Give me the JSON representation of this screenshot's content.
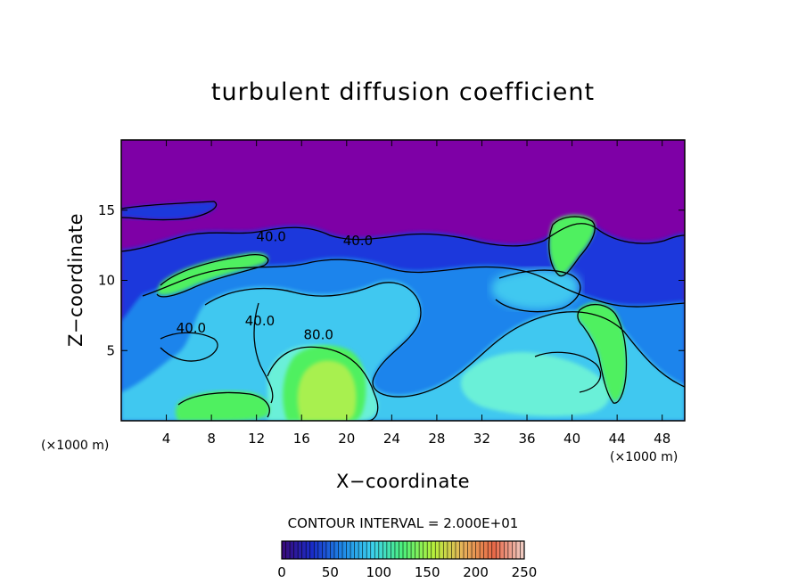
{
  "chart_data": {
    "type": "heatmap",
    "title": "turbulent diffusion coefficient",
    "xlabel": "X−coordinate",
    "ylabel": "Z−coordinate",
    "x_unit_left": "(×1000 m)",
    "x_unit_right": "(×1000 m)",
    "xlim": [
      0,
      50
    ],
    "ylim": [
      0,
      20
    ],
    "x_ticks": [
      4,
      8,
      12,
      16,
      20,
      24,
      28,
      32,
      36,
      40,
      44,
      48
    ],
    "y_ticks": [
      5,
      10,
      15
    ],
    "contour_interval_text": "CONTOUR INTERVAL = 2.000E+01",
    "contour_labels": [
      {
        "text": "80.0",
        "x": 17.5,
        "z": 5.8
      },
      {
        "text": "40.0",
        "x": 12.3,
        "z": 6.8
      },
      {
        "text": "40.0",
        "x": 21.0,
        "z": 12.5
      },
      {
        "text": "40.0",
        "x": 13.3,
        "z": 12.8
      },
      {
        "text": "40.0",
        "x": 6.2,
        "z": 6.3
      }
    ],
    "colorbar": {
      "min": 0,
      "max": 250,
      "tick_values": [
        0,
        50,
        100,
        150,
        200,
        250
      ],
      "tick_labels": [
        "0",
        "50",
        "100",
        "150",
        "200",
        "250"
      ],
      "colors": [
        "#3a0a78",
        "#1a2cc8",
        "#1e88e8",
        "#3cd2ee",
        "#4cf07a",
        "#b6f03c",
        "#e8b05a",
        "#e86848",
        "#f0d0c8"
      ]
    },
    "field_colors": {
      "background_low": "#7e00a6",
      "level_1": "#1a38dc",
      "level_2": "#1e84ec",
      "level_3": "#40c8f0",
      "level_4": "#6af0d8",
      "level_5": "#50f060",
      "level_6": "#a8f050"
    }
  }
}
